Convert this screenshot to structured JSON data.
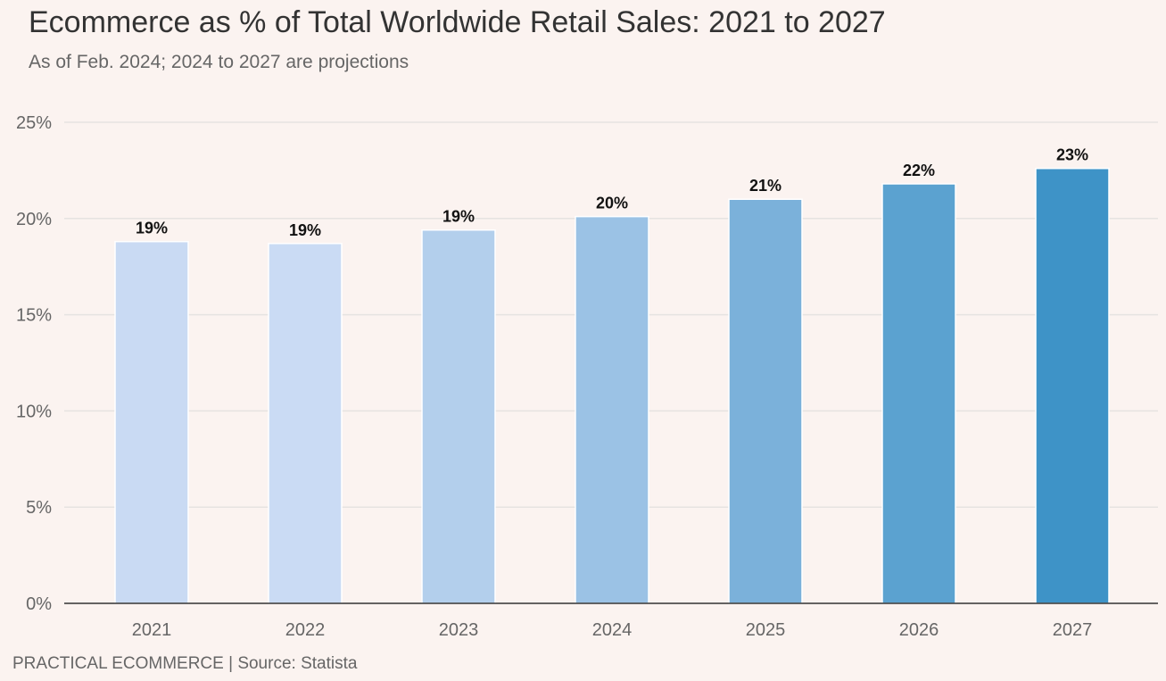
{
  "chart_data": {
    "type": "bar",
    "title": "Ecommerce as % of Total Worldwide Retail Sales: 2021 to 2027",
    "subtitle": "As of Feb. 2024; 2024 to 2027 are projections",
    "categories": [
      "2021",
      "2022",
      "2023",
      "2024",
      "2025",
      "2026",
      "2027"
    ],
    "values": [
      18.8,
      18.7,
      19.4,
      20.1,
      21.0,
      21.8,
      22.6
    ],
    "data_labels": [
      "19%",
      "19%",
      "19%",
      "20%",
      "21%",
      "22%",
      "23%"
    ],
    "bar_colors": [
      "#c9daf3",
      "#cadbf4",
      "#b3cfec",
      "#9bc2e5",
      "#7bb1da",
      "#5ba2d0",
      "#3e93c7"
    ],
    "ylim": [
      0,
      25
    ],
    "yticks": [
      0,
      5,
      10,
      15,
      20,
      25
    ],
    "ytick_labels": [
      "0%",
      "5%",
      "10%",
      "15%",
      "20%",
      "25%"
    ],
    "xlabel": "",
    "ylabel": "",
    "grid": true
  },
  "footer": "PRACTICAL ECOMMERCE | Source: Statista",
  "colors": {
    "background": "#fbf3f0",
    "gridline": "#e6e3e1",
    "axis": "#333333"
  }
}
